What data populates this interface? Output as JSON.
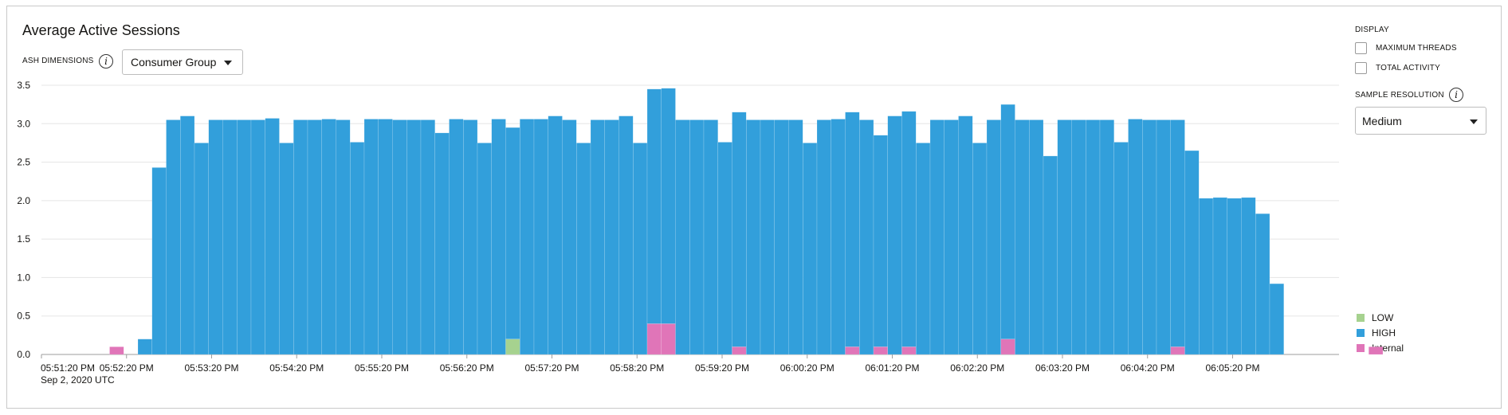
{
  "header": {
    "title": "Average Active Sessions",
    "ash_dimensions_label": "ASH DIMENSIONS",
    "dimension_value": "Consumer Group",
    "info_glyph": "i"
  },
  "side_panel": {
    "display_label": "DISPLAY",
    "max_threads_label": "MAXIMUM THREADS",
    "max_threads_checked": false,
    "total_activity_label": "TOTAL ACTIVITY",
    "total_activity_checked": false,
    "sample_resolution_label": "SAMPLE RESOLUTION",
    "resolution_value": "Medium"
  },
  "colors": {
    "LOW": "#a6d28f",
    "HIGH": "#329fdb",
    "Internal": "#e075b8",
    "grid": "#e5e5e5",
    "axis": "#9e9e9e"
  },
  "chart_data": {
    "type": "bar",
    "stacked": true,
    "xlabel": "",
    "ylabel": "",
    "ylim": [
      0,
      3.5
    ],
    "yticks": [
      "0.0",
      "0.5",
      "1.0",
      "1.5",
      "2.0",
      "2.5",
      "3.0",
      "3.5"
    ],
    "xticks": [
      "05:51:20 PM",
      "05:52:20 PM",
      "05:53:20 PM",
      "05:54:20 PM",
      "05:55:20 PM",
      "05:56:20 PM",
      "05:57:20 PM",
      "05:58:20 PM",
      "05:59:20 PM",
      "06:00:20 PM",
      "06:01:20 PM",
      "06:02:20 PM",
      "06:03:20 PM",
      "06:04:20 PM",
      "06:05:20 PM"
    ],
    "x_sub_label": "Sep 2, 2020 UTC",
    "grid": true,
    "legend_position": "bottom-right",
    "categories_start": "05:51:20 PM",
    "bucket_seconds": 10,
    "series": [
      {
        "name": "LOW",
        "values": [
          0,
          0,
          0,
          0,
          0,
          0,
          0,
          0,
          0,
          0,
          0,
          0,
          0,
          0,
          0,
          0,
          0,
          0,
          0,
          0,
          0,
          0,
          0,
          0,
          0,
          0,
          0,
          0,
          0,
          0,
          0.2,
          0,
          0,
          0,
          0,
          0,
          0,
          0,
          0,
          0,
          0,
          0,
          0,
          0,
          0,
          0,
          0,
          0,
          0,
          0,
          0,
          0,
          0,
          0,
          0,
          0,
          0,
          0,
          0,
          0,
          0,
          0,
          0,
          0,
          0,
          0,
          0,
          0,
          0,
          0,
          0,
          0,
          0,
          0,
          0,
          0,
          0,
          0,
          0,
          0,
          0,
          0,
          0,
          0,
          0,
          0,
          0,
          0,
          0,
          0,
          0,
          0
        ]
      },
      {
        "name": "HIGH",
        "values": [
          0,
          0,
          0,
          0,
          0.2,
          2.43,
          3.05,
          3.1,
          2.75,
          3.05,
          3.05,
          3.05,
          3.05,
          3.07,
          2.75,
          3.05,
          3.05,
          3.06,
          3.05,
          2.76,
          3.06,
          3.06,
          3.05,
          3.05,
          3.05,
          2.88,
          3.06,
          3.05,
          2.75,
          3.06,
          2.75,
          3.06,
          3.06,
          3.1,
          3.05,
          2.75,
          3.05,
          3.05,
          3.1,
          2.75,
          3.05,
          3.06,
          3.05,
          3.05,
          3.05,
          2.76,
          3.05,
          3.05,
          3.05,
          3.05,
          3.05,
          2.75,
          3.05,
          3.06,
          3.05,
          3.05,
          2.75,
          3.1,
          3.06,
          2.75,
          3.05,
          3.05,
          3.1,
          2.75,
          3.05,
          3.05,
          3.05,
          3.05,
          2.58,
          3.05,
          3.05,
          3.05,
          3.05,
          2.76,
          3.06,
          3.05,
          3.05,
          2.95,
          2.65,
          2.03,
          2.04,
          2.03,
          2.04,
          1.83,
          0.92,
          0,
          0,
          0,
          0,
          0,
          0,
          0
        ]
      },
      {
        "name": "Internal",
        "values": [
          0,
          0,
          0.1,
          0,
          0,
          0,
          0,
          0,
          0,
          0,
          0,
          0,
          0,
          0,
          0,
          0,
          0,
          0,
          0,
          0,
          0,
          0,
          0,
          0,
          0,
          0,
          0,
          0,
          0,
          0,
          0,
          0,
          0,
          0,
          0,
          0,
          0,
          0,
          0,
          0,
          0.4,
          0.4,
          0,
          0,
          0,
          0,
          0.1,
          0,
          0,
          0,
          0,
          0,
          0,
          0,
          0.1,
          0,
          0.1,
          0,
          0.1,
          0,
          0,
          0,
          0,
          0,
          0,
          0.2,
          0,
          0,
          0,
          0,
          0,
          0,
          0,
          0,
          0,
          0,
          0,
          0.1,
          0,
          0,
          0,
          0,
          0,
          0,
          0,
          0,
          0,
          0,
          0,
          0,
          0,
          0.1
        ]
      }
    ]
  }
}
